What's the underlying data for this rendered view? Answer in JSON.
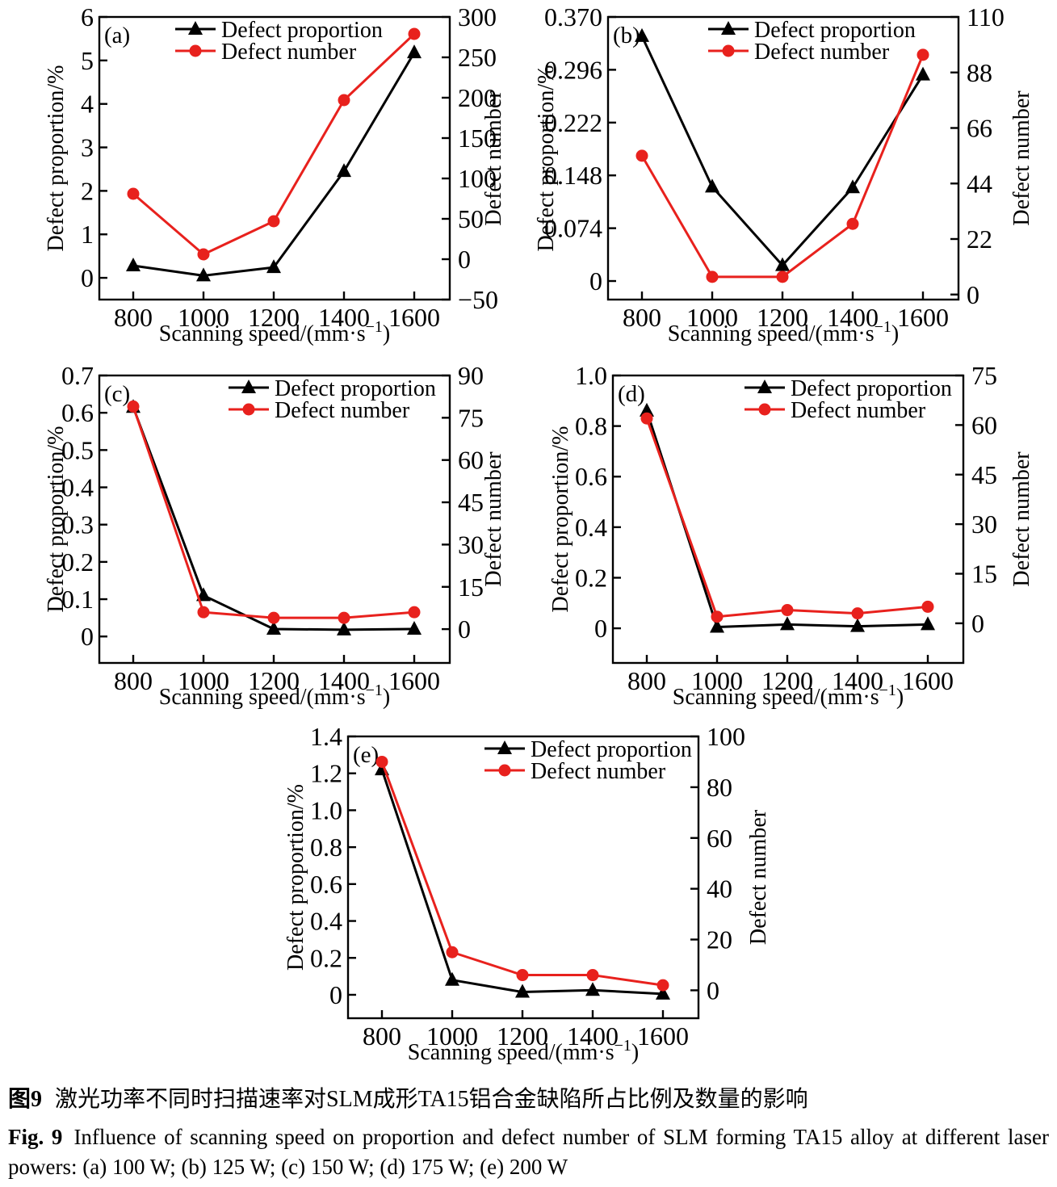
{
  "figure": {
    "caption": {
      "zh_label": "图9",
      "zh_text": "激光功率不同时扫描速率对SLM成形TA15铝合金缺陷所占比例及数量的影响",
      "en_label": "Fig. 9",
      "en_text": "Influence of scanning speed on proportion and defect number of SLM forming TA15 alloy at different laser powers: (a) 100 W; (b) 125 W; (c) 150 W; (d) 175 W; (e) 200 W"
    },
    "colors": {
      "defect_proportion": "#000000",
      "defect_number": "#e8211d"
    },
    "legend_labels": [
      "Defect proportion",
      "Defect number"
    ]
  },
  "chart_data": [
    {
      "type": "line",
      "panel": "(a)",
      "laser_power": "100 W",
      "xlabel": "Scanning speed/(mm·s⁻¹)",
      "ylabel_left": "Defect proportion/%",
      "ylabel_right": "Defect number",
      "x": [
        800,
        1000,
        1200,
        1400,
        1600
      ],
      "x_tick_labels": [
        "800",
        "1000",
        "1200",
        "1400",
        "1600"
      ],
      "series": [
        {
          "name": "Defect proportion",
          "axis": "left",
          "marker": "triangle",
          "color": "#000000",
          "values": [
            0.28,
            0.05,
            0.24,
            2.45,
            5.18
          ]
        },
        {
          "name": "Defect number",
          "axis": "right",
          "marker": "circle",
          "color": "#e8211d",
          "values": [
            81,
            6,
            47,
            197,
            279
          ]
        }
      ],
      "left_axis": {
        "tick_labels": [
          "0",
          "1",
          "2",
          "3",
          "4",
          "5",
          "6"
        ],
        "tick_values": [
          0,
          1,
          2,
          3,
          4,
          5,
          6
        ],
        "range": [
          -0.5,
          6
        ]
      },
      "right_axis": {
        "tick_labels": [
          "−50",
          "0",
          "50",
          "100",
          "150",
          "200",
          "250",
          "300"
        ],
        "tick_values": [
          -50,
          0,
          50,
          100,
          150,
          200,
          250,
          300
        ],
        "range": [
          -50,
          300
        ]
      },
      "grid": false,
      "legend_position": "top-inside"
    },
    {
      "type": "line",
      "panel": "(b)",
      "laser_power": "125 W",
      "xlabel": "Scanning speed/(mm·s⁻¹)",
      "ylabel_left": "Defect proportion/%",
      "ylabel_right": "Defect number",
      "x": [
        800,
        1000,
        1200,
        1400,
        1600
      ],
      "x_tick_labels": [
        "800",
        "1000",
        "1200",
        "1400",
        "1600"
      ],
      "series": [
        {
          "name": "Defect proportion",
          "axis": "left",
          "marker": "triangle",
          "color": "#000000",
          "values": [
            0.343,
            0.132,
            0.022,
            0.131,
            0.289
          ]
        },
        {
          "name": "Defect number",
          "axis": "right",
          "marker": "circle",
          "color": "#e8211d",
          "values": [
            55,
            7,
            7,
            28,
            95
          ]
        }
      ],
      "left_axis": {
        "tick_labels": [
          "0",
          "0.074",
          "0.148",
          "0.222",
          "0.296",
          "0.370"
        ],
        "tick_values": [
          0,
          0.074,
          0.148,
          0.222,
          0.296,
          0.37
        ],
        "range": [
          -0.026,
          0.37
        ]
      },
      "right_axis": {
        "tick_labels": [
          "0",
          "22",
          "44",
          "66",
          "88",
          "110"
        ],
        "tick_values": [
          0,
          22,
          44,
          66,
          88,
          110
        ],
        "range": [
          -2,
          110
        ]
      },
      "grid": false,
      "legend_position": "top-inside"
    },
    {
      "type": "line",
      "panel": "(c)",
      "laser_power": "150 W",
      "xlabel": "Scanning speed/(mm·s⁻¹)",
      "ylabel_left": "Defect proportion/%",
      "ylabel_right": "Defect number",
      "x": [
        800,
        1000,
        1200,
        1400,
        1600
      ],
      "x_tick_labels": [
        "800",
        "1000",
        "1200",
        "1400",
        "1600"
      ],
      "series": [
        {
          "name": "Defect proportion",
          "axis": "left",
          "marker": "triangle",
          "color": "#000000",
          "values": [
            0.615,
            0.11,
            0.02,
            0.018,
            0.02
          ]
        },
        {
          "name": "Defect number",
          "axis": "right",
          "marker": "circle",
          "color": "#e8211d",
          "values": [
            79,
            6,
            4,
            4,
            6
          ]
        }
      ],
      "left_axis": {
        "tick_labels": [
          "0",
          "0.1",
          "0.2",
          "0.3",
          "0.4",
          "0.5",
          "0.6",
          "0.7"
        ],
        "tick_values": [
          0,
          0.1,
          0.2,
          0.3,
          0.4,
          0.5,
          0.6,
          0.7
        ],
        "range": [
          -0.071,
          0.7
        ]
      },
      "right_axis": {
        "tick_labels": [
          "0",
          "15",
          "30",
          "45",
          "60",
          "75",
          "90"
        ],
        "tick_values": [
          0,
          15,
          30,
          45,
          60,
          75,
          90
        ],
        "range": [
          -12,
          90
        ]
      },
      "grid": false,
      "legend_position": "top-inside"
    },
    {
      "type": "line",
      "panel": "(d)",
      "laser_power": "175 W",
      "xlabel": "Scanning speed/(mm·s⁻¹)",
      "ylabel_left": "Defect proportion/%",
      "ylabel_right": "Defect number",
      "x": [
        800,
        1000,
        1200,
        1400,
        1600
      ],
      "x_tick_labels": [
        "800",
        "1000",
        "1200",
        "1400",
        "1600"
      ],
      "series": [
        {
          "name": "Defect proportion",
          "axis": "left",
          "marker": "triangle",
          "color": "#000000",
          "values": [
            0.86,
            0.005,
            0.015,
            0.008,
            0.015
          ]
        },
        {
          "name": "Defect number",
          "axis": "right",
          "marker": "circle",
          "color": "#e8211d",
          "values": [
            62,
            2,
            4,
            3,
            5
          ]
        }
      ],
      "left_axis": {
        "tick_labels": [
          "0",
          "0.2",
          "0.4",
          "0.6",
          "0.8",
          "1.0"
        ],
        "tick_values": [
          0,
          0.2,
          0.4,
          0.6,
          0.8,
          1.0
        ],
        "range": [
          -0.137,
          1.0
        ]
      },
      "right_axis": {
        "tick_labels": [
          "0",
          "15",
          "30",
          "45",
          "60",
          "75"
        ],
        "tick_values": [
          0,
          15,
          30,
          45,
          60,
          75
        ],
        "range": [
          -12,
          75
        ]
      },
      "grid": false,
      "legend_position": "top-inside"
    },
    {
      "type": "line",
      "panel": "(e)",
      "laser_power": "200 W",
      "xlabel": "Scanning speed/(mm·s⁻¹)",
      "ylabel_left": "Defect proportion/%",
      "ylabel_right": "Defect number",
      "x": [
        800,
        1000,
        1200,
        1400,
        1600
      ],
      "x_tick_labels": [
        "800",
        "1000",
        "1200",
        "1400",
        "1600"
      ],
      "series": [
        {
          "name": "Defect proportion",
          "axis": "left",
          "marker": "triangle",
          "color": "#000000",
          "values": [
            1.22,
            0.08,
            0.015,
            0.025,
            0.005
          ]
        },
        {
          "name": "Defect number",
          "axis": "right",
          "marker": "circle",
          "color": "#e8211d",
          "values": [
            90,
            15,
            6,
            6,
            2
          ]
        }
      ],
      "left_axis": {
        "tick_labels": [
          "0",
          "0.2",
          "0.4",
          "0.6",
          "0.8",
          "1.0",
          "1.2",
          "1.4"
        ],
        "tick_values": [
          0,
          0.2,
          0.4,
          0.6,
          0.8,
          1.0,
          1.2,
          1.4
        ],
        "range": [
          -0.127,
          1.4
        ]
      },
      "right_axis": {
        "tick_labels": [
          "0",
          "20",
          "40",
          "60",
          "80",
          "100"
        ],
        "tick_values": [
          0,
          20,
          40,
          60,
          80,
          100
        ],
        "range": [
          -11,
          100
        ]
      },
      "grid": false,
      "legend_position": "top-inside"
    }
  ]
}
